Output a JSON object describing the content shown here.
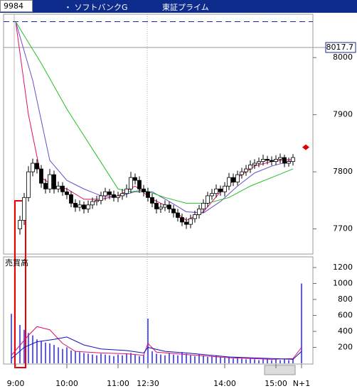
{
  "header": {
    "code": "9984",
    "name": "・ ソフトバンクG",
    "market": "東証プライム"
  },
  "chart_data": [
    {
      "type": "candlestick",
      "x": [
        1,
        2,
        3,
        4,
        5,
        6,
        7,
        8,
        9,
        10,
        11,
        12,
        13,
        14,
        15,
        16,
        17,
        18,
        19,
        20,
        21,
        22,
        23,
        24,
        25,
        26,
        27,
        28,
        29,
        30,
        31,
        32,
        33,
        34,
        35,
        36,
        37,
        38,
        39,
        40,
        41,
        42,
        43,
        44,
        45,
        46,
        47,
        48,
        49,
        50,
        51,
        52,
        53,
        54,
        55,
        56,
        57,
        58,
        59,
        60,
        61,
        62,
        63,
        64,
        65
      ],
      "open": [
        7700,
        7715,
        7755,
        7800,
        7815,
        7805,
        7780,
        7770,
        7795,
        7770,
        7775,
        7765,
        7760,
        7745,
        7738,
        7742,
        7735,
        7742,
        7748,
        7750,
        7758,
        7765,
        7760,
        7755,
        7758,
        7762,
        7770,
        7790,
        7785,
        7770,
        7765,
        7755,
        7745,
        7735,
        7738,
        7742,
        7735,
        7728,
        7720,
        7712,
        7708,
        7718,
        7725,
        7735,
        7745,
        7758,
        7762,
        7770,
        7765,
        7775,
        7790,
        7782,
        7795,
        7800,
        7805,
        7812,
        7815,
        7818,
        7822,
        7820,
        7818,
        7822,
        7825,
        7815,
        7818
      ],
      "high": [
        7723,
        7763,
        7810,
        7823,
        7822,
        7812,
        7788,
        7805,
        7802,
        7783,
        7782,
        7772,
        7766,
        7752,
        7750,
        7748,
        7750,
        7755,
        7758,
        7765,
        7772,
        7770,
        7767,
        7765,
        7770,
        7778,
        7800,
        7797,
        7792,
        7777,
        7772,
        7762,
        7752,
        7745,
        7750,
        7748,
        7742,
        7735,
        7727,
        7720,
        7725,
        7732,
        7742,
        7752,
        7765,
        7770,
        7778,
        7776,
        7782,
        7798,
        7797,
        7802,
        7807,
        7812,
        7820,
        7822,
        7825,
        7830,
        7828,
        7827,
        7829,
        7832,
        7830,
        7825,
        7831
      ],
      "low": [
        7690,
        7707,
        7748,
        7792,
        7797,
        7772,
        7762,
        7763,
        7762,
        7764,
        7758,
        7752,
        7738,
        7730,
        7731,
        7727,
        7728,
        7735,
        7741,
        7743,
        7750,
        7752,
        7748,
        7747,
        7751,
        7755,
        7763,
        7778,
        7763,
        7757,
        7748,
        7738,
        7727,
        7728,
        7731,
        7728,
        7720,
        7713,
        7705,
        7700,
        7701,
        7711,
        7718,
        7728,
        7738,
        7751,
        7755,
        7758,
        7757,
        7768,
        7775,
        7776,
        7788,
        7793,
        7798,
        7805,
        7808,
        7811,
        7813,
        7811,
        7812,
        7815,
        7808,
        7809,
        7811
      ],
      "close": [
        7715,
        7755,
        7800,
        7815,
        7805,
        7780,
        7770,
        7795,
        7770,
        7775,
        7765,
        7760,
        7745,
        7738,
        7742,
        7735,
        7742,
        7748,
        7750,
        7758,
        7765,
        7760,
        7755,
        7758,
        7762,
        7770,
        7790,
        7785,
        7770,
        7765,
        7755,
        7745,
        7735,
        7738,
        7742,
        7735,
        7728,
        7720,
        7712,
        7708,
        7718,
        7725,
        7735,
        7745,
        7758,
        7762,
        7770,
        7765,
        7775,
        7790,
        7782,
        7795,
        7800,
        7805,
        7812,
        7815,
        7818,
        7822,
        7820,
        7818,
        7822,
        7825,
        7815,
        7818,
        7825
      ],
      "series": [
        {
          "color": "#e0106a",
          "x": [
            0,
            3,
            6,
            9,
            12,
            16,
            20,
            24,
            28,
            32,
            36,
            40,
            44,
            48,
            52,
            56,
            60,
            65
          ],
          "values": [
            8063,
            7900,
            7790,
            7775,
            7770,
            7752,
            7752,
            7758,
            7775,
            7752,
            7738,
            7715,
            7730,
            7765,
            7790,
            7810,
            7818,
            7822
          ]
        },
        {
          "color": "#6a4cc8",
          "x": [
            0,
            4,
            8,
            12,
            16,
            20,
            24,
            28,
            32,
            36,
            40,
            44,
            48,
            52,
            56,
            60,
            65
          ],
          "values": [
            8063,
            7960,
            7820,
            7785,
            7770,
            7758,
            7757,
            7765,
            7765,
            7748,
            7730,
            7728,
            7748,
            7775,
            7798,
            7810,
            7820
          ]
        },
        {
          "color": "#22c022",
          "x": [
            0,
            6,
            12,
            18,
            24,
            27,
            30,
            35,
            40,
            45,
            50,
            55,
            60,
            65
          ],
          "values": [
            8063,
            7990,
            7910,
            7840,
            7770,
            7765,
            7768,
            7755,
            7745,
            7745,
            7755,
            7775,
            7790,
            7805
          ]
        }
      ],
      "reference_line": 8063,
      "price_label": {
        "value": 8017.7,
        "label": "8017.7"
      },
      "marker": {
        "x": 68,
        "y": 7843,
        "color": "#e00000"
      },
      "ylim": [
        7656,
        8076
      ],
      "yticks": [
        7700,
        7800,
        7900,
        8000
      ]
    },
    {
      "type": "bar",
      "ylabel": "売買高",
      "x": [
        -1,
        1,
        2,
        3,
        4,
        5,
        6,
        7,
        8,
        9,
        10,
        11,
        12,
        13,
        14,
        15,
        16,
        17,
        18,
        19,
        20,
        21,
        22,
        23,
        24,
        25,
        26,
        27,
        28,
        29,
        30,
        31,
        32,
        33,
        34,
        35,
        36,
        37,
        38,
        39,
        40,
        41,
        42,
        43,
        44,
        45,
        46,
        47,
        48,
        49,
        50,
        51,
        52,
        53,
        54,
        55,
        56,
        57,
        58,
        59,
        60,
        61,
        62,
        63,
        64,
        65,
        67
      ],
      "values": [
        620,
        480,
        420,
        380,
        350,
        300,
        280,
        260,
        250,
        230,
        200,
        180,
        200,
        160,
        150,
        140,
        130,
        120,
        110,
        100,
        120,
        110,
        100,
        90,
        110,
        100,
        120,
        130,
        110,
        90,
        100,
        560,
        150,
        120,
        110,
        100,
        130,
        110,
        100,
        140,
        120,
        100,
        90,
        110,
        100,
        80,
        90,
        100,
        80,
        70,
        80,
        60,
        70,
        60,
        50,
        60,
        50,
        40,
        50,
        60,
        40,
        50,
        40,
        50,
        40,
        60,
        1000
      ],
      "color": "#5a5aff",
      "series": [
        {
          "color": "#e0106a",
          "x": [
            -1,
            3,
            5,
            8,
            11,
            14,
            20,
            26,
            30,
            31,
            33,
            40,
            50,
            60,
            65,
            67
          ],
          "values": [
            100,
            350,
            460,
            420,
            250,
            150,
            130,
            120,
            100,
            250,
            140,
            110,
            70,
            50,
            60,
            200
          ]
        },
        {
          "color": "#1010c0",
          "x": [
            -1,
            2,
            5,
            9,
            12,
            16,
            20,
            26,
            30,
            31,
            35,
            40,
            50,
            60,
            65,
            67
          ],
          "values": [
            60,
            200,
            270,
            300,
            330,
            230,
            180,
            160,
            130,
            200,
            150,
            130,
            80,
            60,
            50,
            150
          ]
        }
      ],
      "ylim": [
        0,
        1333
      ],
      "yticks": [
        200,
        400,
        600,
        800,
        1000,
        1200
      ],
      "xticks": [
        {
          "value": 0,
          "label": "9:00"
        },
        {
          "value": 12,
          "label": "10:00"
        },
        {
          "value": 24,
          "label": "11:00"
        },
        {
          "value": 31,
          "label": "12:30"
        },
        {
          "value": 49,
          "label": "14:00"
        },
        {
          "value": 61,
          "label": "15:00"
        },
        {
          "value": 67,
          "label": "N+1"
        }
      ]
    }
  ]
}
